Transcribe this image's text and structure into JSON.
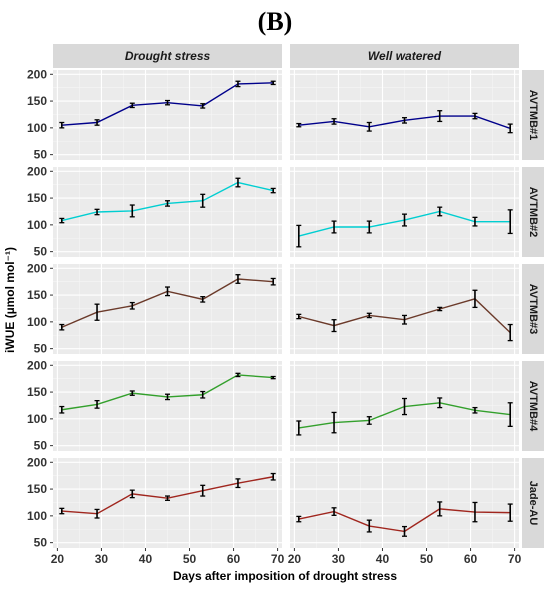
{
  "figure": {
    "panel_label": "(B)",
    "xlabel": "Days after imposition of drought stress",
    "ylabel": "iWUE (µmol mol⁻¹)"
  },
  "chart_data": {
    "type": "line",
    "panel_label": "(B)",
    "xlabel": "Days after imposition of drought stress",
    "ylabel": "iWUE (µmol mol⁻¹)",
    "columns": [
      "Drought stress",
      "Well watered"
    ],
    "rows": [
      "AVTMB#1",
      "AVTMB#2",
      "AVTMB#3",
      "AVTMB#4",
      "Jade-AU"
    ],
    "x": [
      21,
      29,
      37,
      45,
      53,
      61,
      69
    ],
    "xlim": [
      19,
      71
    ],
    "xticks": [
      20,
      30,
      40,
      50,
      60,
      70
    ],
    "ylim": [
      40,
      208
    ],
    "yticks": [
      50,
      100,
      150,
      200
    ],
    "grid": true,
    "legend": "none",
    "series": [
      {
        "color": "#00008b",
        "panels": [
          {
            "values": [
              105,
              110,
              142,
              147,
              141,
              182,
              184
            ],
            "errors": [
              5,
              5,
              4,
              4,
              4,
              5,
              3
            ]
          },
          {
            "values": [
              105,
              112,
              102,
              114,
              122,
              122,
              99
            ],
            "errors": [
              3,
              5,
              8,
              5,
              10,
              5,
              8
            ]
          }
        ]
      },
      {
        "color": "#00ced1",
        "panels": [
          {
            "values": [
              108,
              124,
              126,
              140,
              145,
              179,
              164
            ],
            "errors": [
              4,
              5,
              11,
              5,
              12,
              8,
              4
            ]
          },
          {
            "values": [
              79,
              96,
              96,
              109,
              125,
              106,
              106
            ],
            "errors": [
              20,
              11,
              11,
              11,
              8,
              8,
              22
            ]
          }
        ]
      },
      {
        "color": "#6b3a2a",
        "panels": [
          {
            "values": [
              90,
              118,
              130,
              157,
              142,
              180,
              175
            ],
            "errors": [
              5,
              15,
              6,
              8,
              5,
              8,
              6
            ]
          },
          {
            "values": [
              110,
              93,
              112,
              104,
              124,
              143,
              80
            ],
            "errors": [
              4,
              11,
              4,
              8,
              3,
              16,
              15
            ]
          }
        ]
      },
      {
        "color": "#33a02c",
        "panels": [
          {
            "values": [
              117,
              127,
              148,
              141,
              145,
              182,
              177
            ],
            "errors": [
              6,
              7,
              4,
              5,
              6,
              3,
              2
            ]
          },
          {
            "values": [
              83,
              93,
              97,
              123,
              130,
              116,
              108
            ],
            "errors": [
              13,
              19,
              7,
              15,
              9,
              5,
              22
            ]
          }
        ]
      },
      {
        "color": "#a0261e",
        "panels": [
          {
            "values": [
              109,
              104,
              141,
              133,
              147,
              161,
              173
            ],
            "errors": [
              5,
              8,
              7,
              4,
              10,
              8,
              6
            ]
          },
          {
            "values": [
              94,
              108,
              81,
              71,
              113,
              107,
              106
            ],
            "errors": [
              5,
              7,
              11,
              9,
              13,
              18,
              16
            ]
          }
        ]
      }
    ]
  }
}
